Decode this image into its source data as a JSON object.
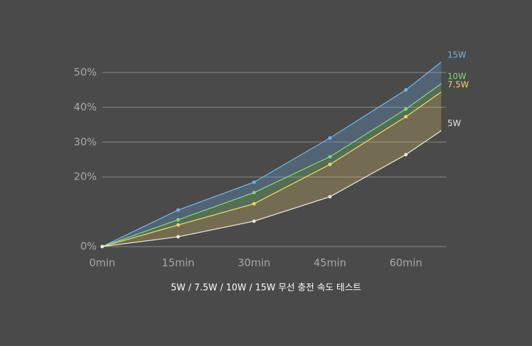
{
  "chart_data": {
    "type": "line",
    "title": "5W / 7.5W / 10W / 15W 무선 충전 속도 테스트",
    "x": [
      0,
      15,
      30,
      45,
      60,
      67
    ],
    "series": [
      {
        "name": "15W",
        "color": "#6db5ee",
        "values": [
          0,
          10.5,
          18.5,
          31.2,
          45,
          53
        ]
      },
      {
        "name": "10W",
        "color": "#7ddb6e",
        "values": [
          0,
          7.7,
          15.5,
          25.8,
          39.5,
          46.8
        ]
      },
      {
        "name": "7.5W",
        "color": "#f5d36b",
        "values": [
          0,
          6.2,
          12.3,
          23.6,
          37.3,
          44.4
        ]
      },
      {
        "name": "5W",
        "color": "#e6e6e6",
        "values": [
          0,
          2.8,
          7.3,
          14.3,
          26.4,
          33.3
        ]
      }
    ],
    "xlim": [
      0,
      68
    ],
    "xticks": [
      {
        "value": 0,
        "label": "0min"
      },
      {
        "value": 15,
        "label": "15min"
      },
      {
        "value": 30,
        "label": "30min"
      },
      {
        "value": 45,
        "label": "45min"
      },
      {
        "value": 60,
        "label": "60min"
      }
    ],
    "ylim": [
      0,
      50
    ],
    "yticks": [
      {
        "value": 0,
        "label": "0%"
      },
      {
        "value": 20,
        "label": "20%"
      },
      {
        "value": 30,
        "label": "30%"
      },
      {
        "value": 40,
        "label": "40%"
      },
      {
        "value": 50,
        "label": "50%"
      }
    ],
    "grid": true
  }
}
